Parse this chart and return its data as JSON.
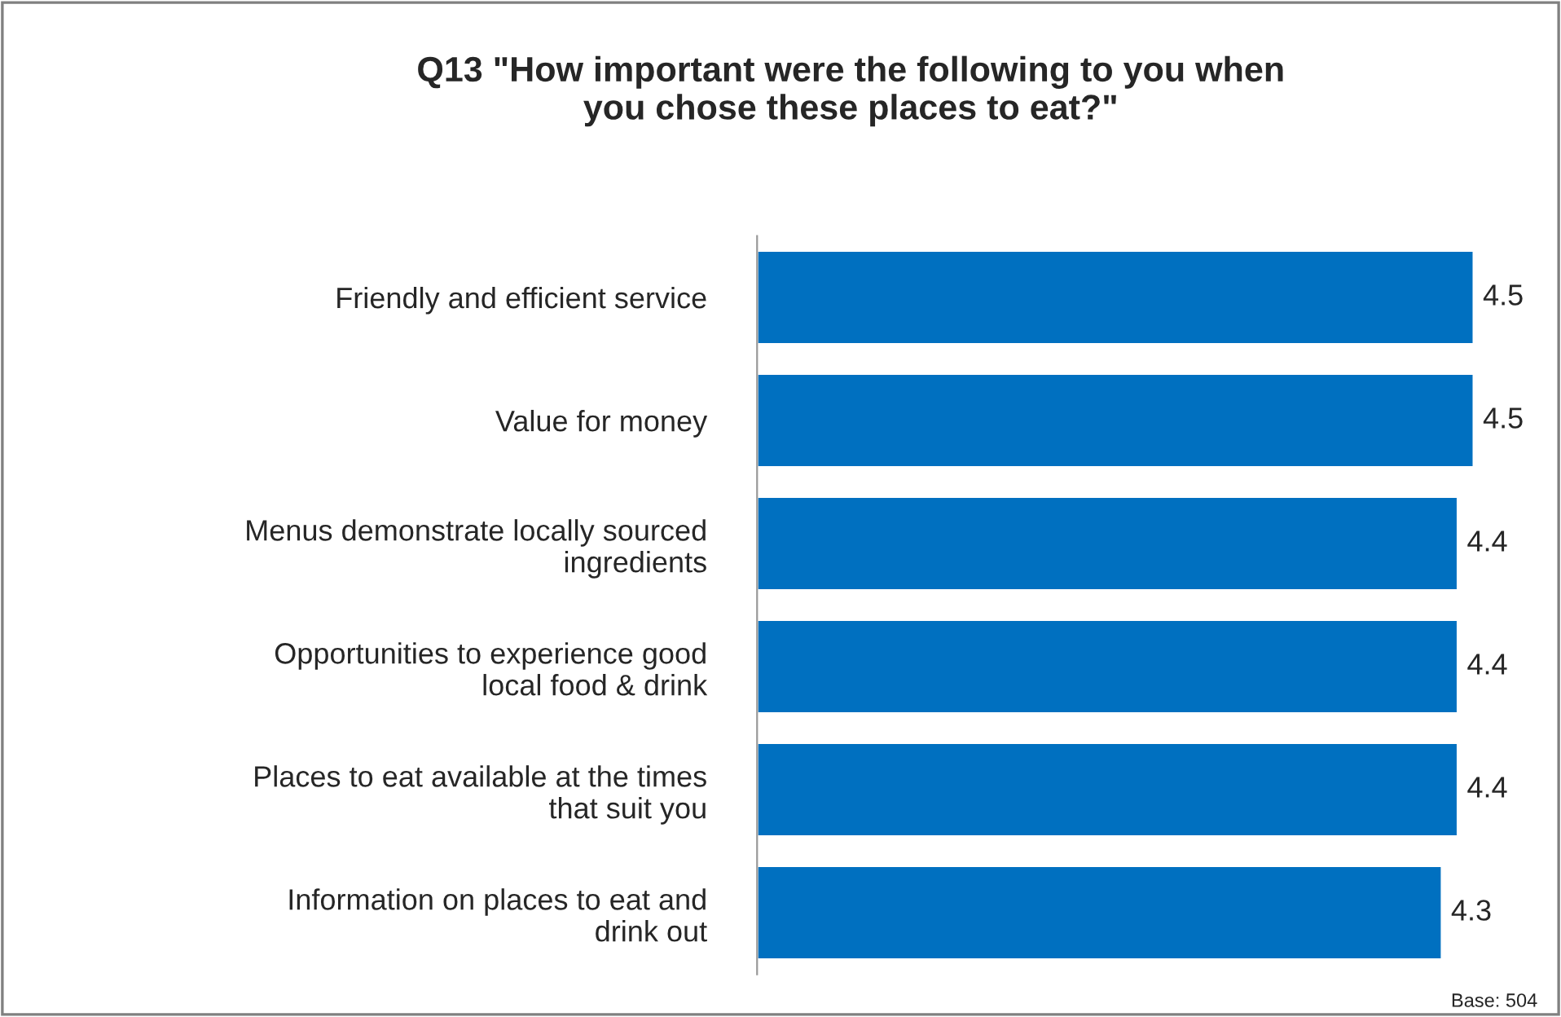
{
  "chart_data": {
    "type": "bar",
    "orientation": "horizontal",
    "title": "Q13 \"How important were the following to you when\nyou chose these places to eat?\"",
    "categories": [
      "Friendly and efficient service",
      "Value for money",
      "Menus demonstrate locally sourced\ningredients",
      "Opportunities to experience good\nlocal food & drink",
      "Places to eat available at the times\nthat suit you",
      "Information on places to eat and\ndrink out"
    ],
    "values": [
      4.5,
      4.5,
      4.4,
      4.4,
      4.4,
      4.3
    ],
    "color": "#0070c0",
    "data_labels": true,
    "annotations": [
      "Base: 504"
    ]
  }
}
